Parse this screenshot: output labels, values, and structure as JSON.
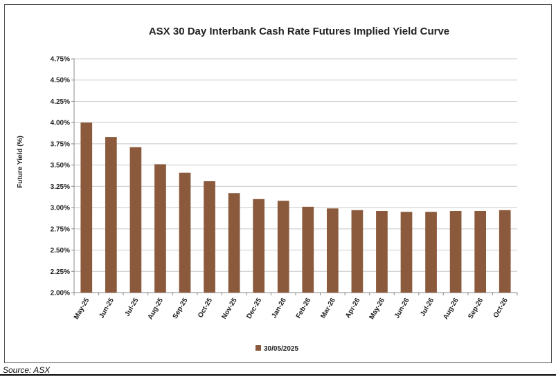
{
  "chart_data": {
    "type": "bar",
    "title": "ASX 30 Day Interbank Cash Rate Futures Implied Yield Curve",
    "ylabel": "Future Yield (%)",
    "xlabel": "",
    "ylim": [
      2.0,
      4.75
    ],
    "yticks": [
      "2.00%",
      "2.25%",
      "2.50%",
      "2.75%",
      "3.00%",
      "3.25%",
      "3.50%",
      "3.75%",
      "4.00%",
      "4.25%",
      "4.50%",
      "4.75%"
    ],
    "grid": true,
    "legend_position": "bottom",
    "bar_color": "#8B5A3C",
    "categories": [
      "May-25",
      "Jun-25",
      "Jul-25",
      "Aug-25",
      "Sep-25",
      "Oct-25",
      "Nov-25",
      "Dec-25",
      "Jan-26",
      "Feb-26",
      "Mar-26",
      "Apr-26",
      "May-26",
      "Jun-26",
      "Jul-26",
      "Aug-26",
      "Sep-26",
      "Oct-26"
    ],
    "series": [
      {
        "name": "30/05/2025",
        "values": [
          4.0,
          3.83,
          3.71,
          3.51,
          3.41,
          3.31,
          3.17,
          3.1,
          3.08,
          3.01,
          2.99,
          2.97,
          2.96,
          2.95,
          2.95,
          2.96,
          2.96,
          2.97
        ]
      }
    ]
  },
  "source": "Source: ASX"
}
